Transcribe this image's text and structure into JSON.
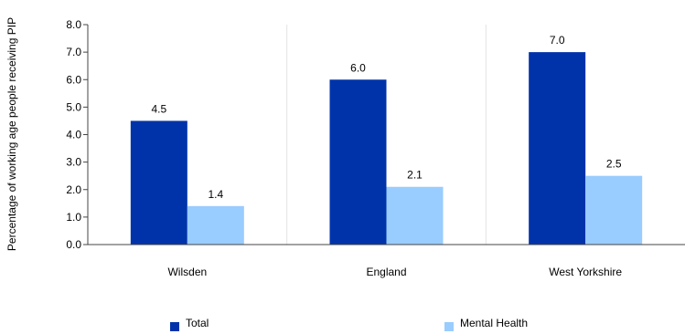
{
  "chart_data": {
    "type": "bar",
    "categories": [
      "Wilsden",
      "England",
      "West Yorkshire"
    ],
    "series": [
      {
        "name": "Total",
        "values": [
          4.5,
          6.0,
          7.0
        ],
        "color": "#0033aa"
      },
      {
        "name": "Mental Health",
        "values": [
          1.4,
          2.1,
          2.5
        ],
        "color": "#99ccff"
      }
    ],
    "title": "",
    "xlabel": "",
    "ylabel": "Percentage of working age people receiving PIP",
    "ylim": [
      0,
      8
    ],
    "yticks": [
      "0.0",
      "1.0",
      "2.0",
      "3.0",
      "4.0",
      "5.0",
      "6.0",
      "7.0",
      "8.0"
    ],
    "data_labels": [
      [
        "4.5",
        "6.0",
        "7.0"
      ],
      [
        "1.4",
        "2.1",
        "2.5"
      ]
    ],
    "grid": "vertical-separators",
    "legend_position": "bottom"
  }
}
